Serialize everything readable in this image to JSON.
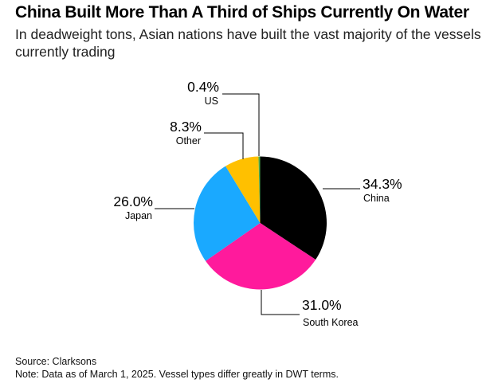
{
  "chart_data": {
    "type": "pie",
    "title": "China Built More Than A Third of Ships Currently On Water",
    "subtitle": "In deadweight tons, Asian nations have built the vast majority of the vessels currently trading",
    "start": "12 o'clock, clockwise",
    "slices": [
      {
        "label": "China",
        "value": 34.3,
        "value_label": "34.3%",
        "color": "#000000"
      },
      {
        "label": "South Korea",
        "value": 31.0,
        "value_label": "31.0%",
        "color": "#ff1a9c"
      },
      {
        "label": "Japan",
        "value": 26.0,
        "value_label": "26.0%",
        "color": "#1aa9ff"
      },
      {
        "label": "Other",
        "value": 8.3,
        "value_label": "8.3%",
        "color": "#ffc000"
      },
      {
        "label": "US",
        "value": 0.4,
        "value_label": "0.4%",
        "color": "#4caf50"
      }
    ]
  },
  "footer": {
    "source": "Source: Clarksons",
    "note": "Note: Data as of March 1, 2025. Vessel types differ greatly in DWT terms."
  }
}
